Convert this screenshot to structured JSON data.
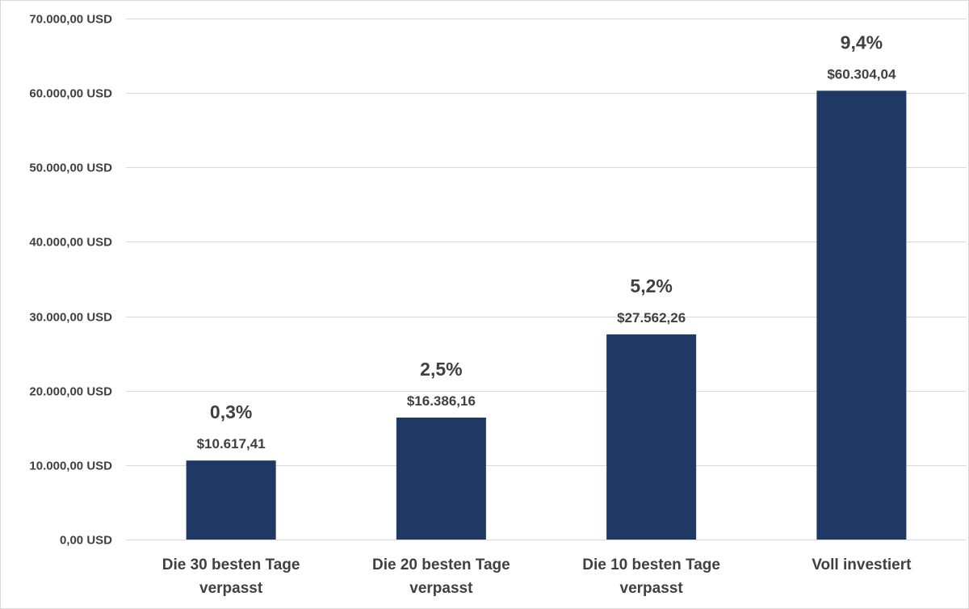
{
  "chart_data": {
    "type": "bar",
    "categories": [
      [
        "Die 30 besten Tage",
        "verpasst"
      ],
      [
        "Die 20 besten Tage",
        "verpasst"
      ],
      [
        "Die 10 besten Tage",
        "verpasst"
      ],
      [
        "Voll investiert"
      ]
    ],
    "values": [
      10617.41,
      16386.16,
      27562.26,
      60304.04
    ],
    "value_labels": [
      "$10.617,41",
      "$16.386,16",
      "$27.562,26",
      "$60.304,04"
    ],
    "percent_labels": [
      "0,3%",
      "2,5%",
      "5,2%",
      "9,4%"
    ],
    "y_ticks": [
      0,
      10000,
      20000,
      30000,
      40000,
      50000,
      60000,
      70000
    ],
    "y_tick_labels": [
      "0,00 USD",
      "10.000,00 USD",
      "20.000,00 USD",
      "30.000,00 USD",
      "40.000,00 USD",
      "50.000,00 USD",
      "60.000,00 USD",
      "70.000,00 USD"
    ],
    "ylim": [
      0,
      70000
    ],
    "grid": true,
    "legend": "none",
    "title": "",
    "xlabel": "",
    "ylabel": "",
    "bar_color": "#1f3864",
    "text_color": "#404040",
    "grid_color": "#d9d9d9"
  }
}
